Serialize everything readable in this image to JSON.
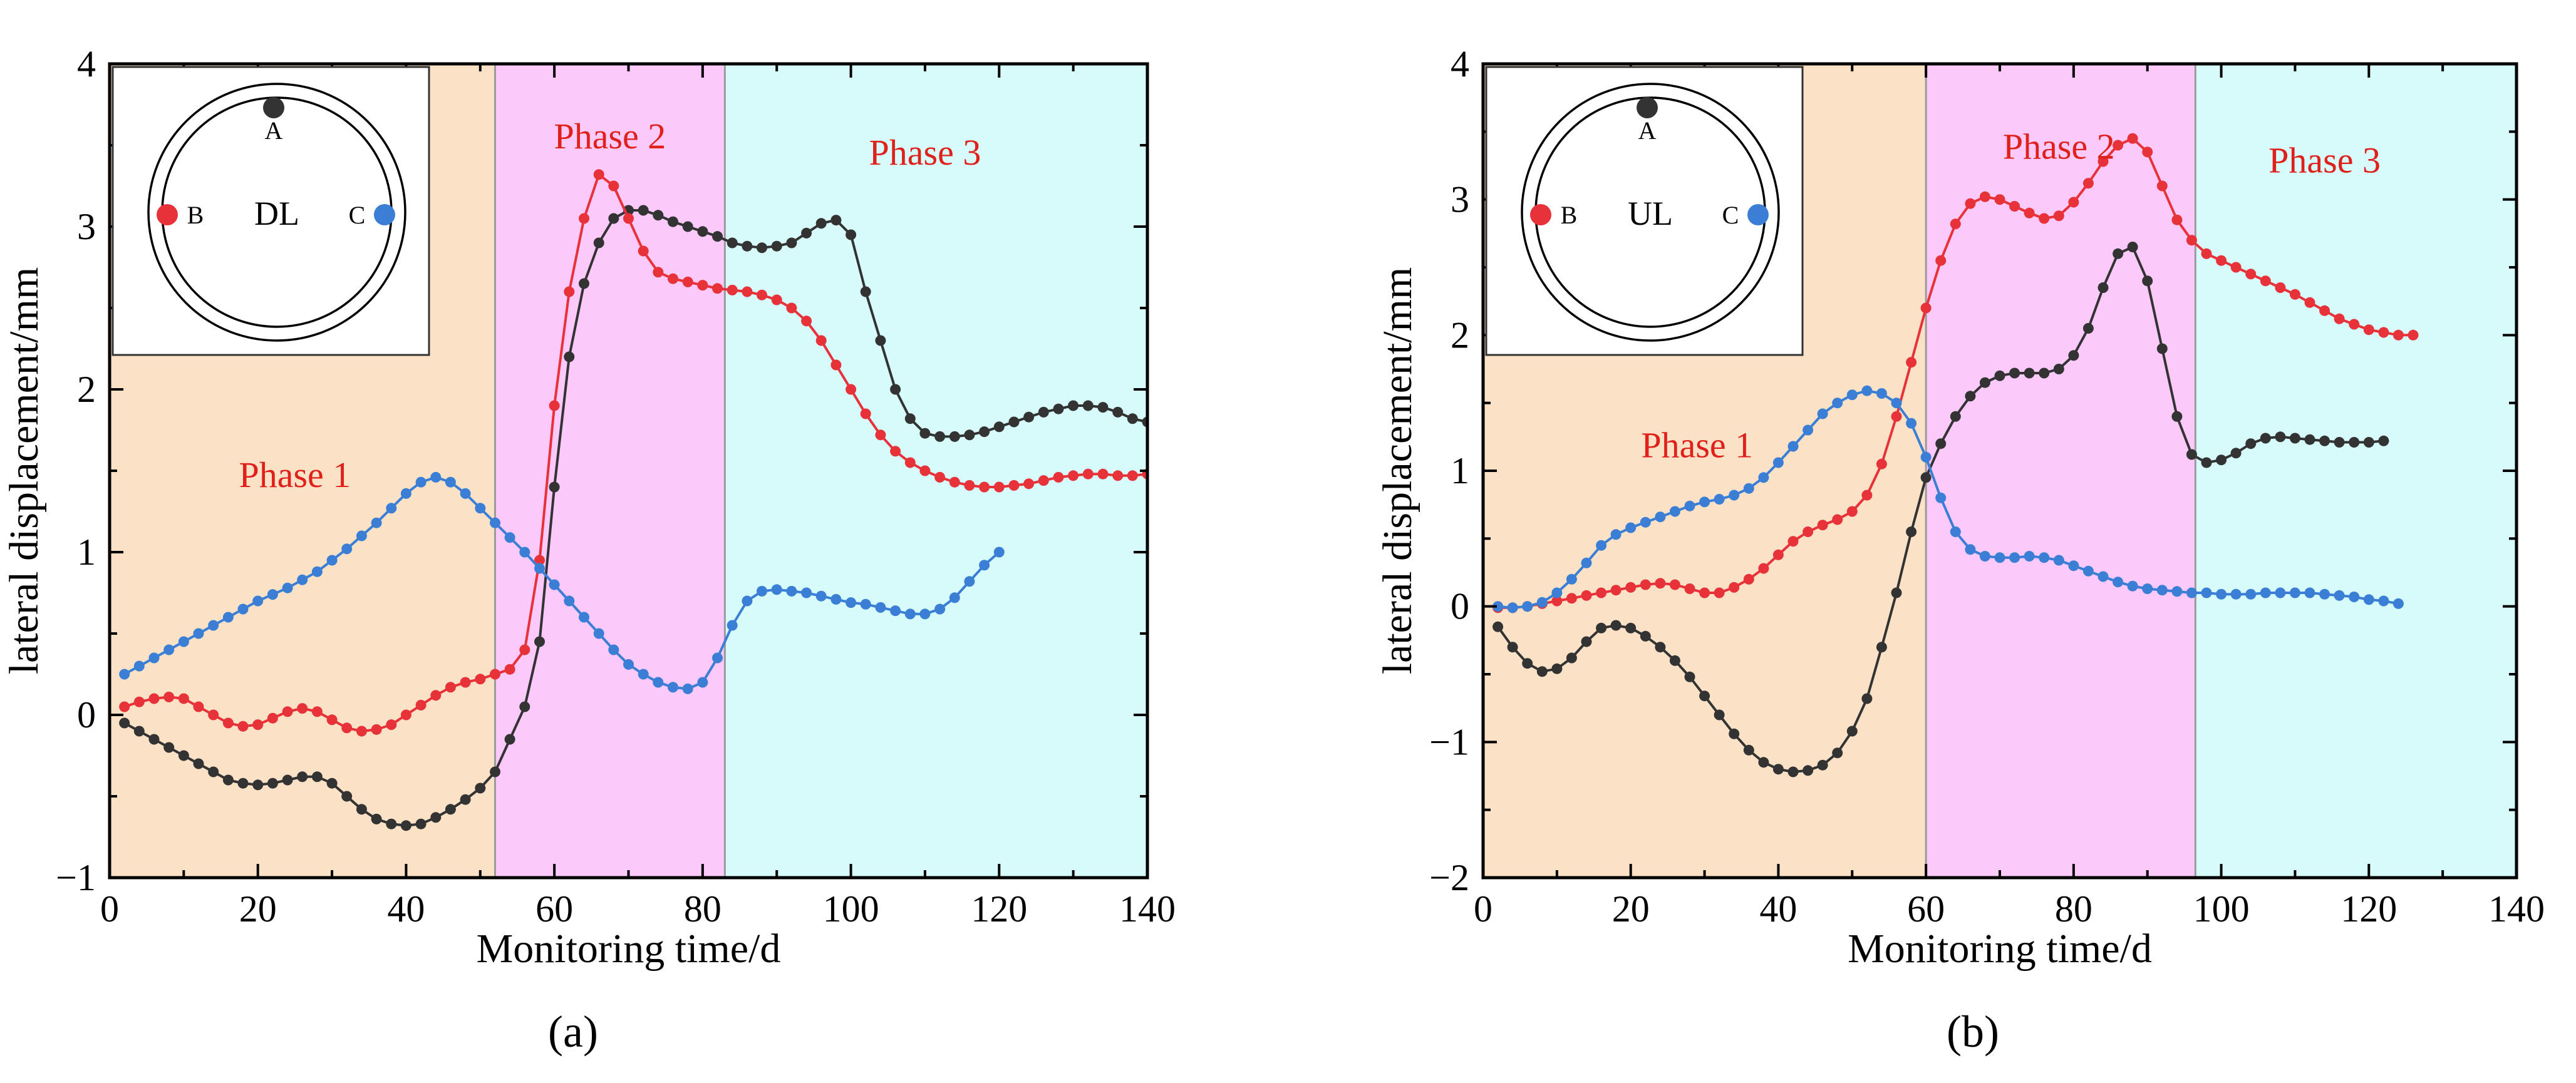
{
  "figure": {
    "panels": [
      "a",
      "b"
    ]
  },
  "colors": {
    "phase1_bg": "#fbe2c6",
    "phase2_bg": "#fcc9fb",
    "phase3_bg": "#d7fbfb",
    "series_A": "#333333",
    "series_B": "#e8323a",
    "series_C": "#3a7fd5",
    "phase_label": "#e0201a"
  },
  "chart_data": [
    {
      "type": "line",
      "panel_label": "(a)",
      "xlabel": "Monitoring time/d",
      "ylabel": "lateral displacement/mm",
      "xlim": [
        0,
        140
      ],
      "ylim": [
        -1,
        4
      ],
      "xticks": [
        0,
        20,
        40,
        60,
        80,
        100,
        120,
        140
      ],
      "yticks": [
        -1,
        0,
        1,
        2,
        3,
        4
      ],
      "phases": [
        {
          "label": "Phase 1",
          "x_start": 0,
          "x_end": 52,
          "label_x": 25,
          "label_y": 1.4
        },
        {
          "label": "Phase 2",
          "x_start": 52,
          "x_end": 83,
          "label_x": 67.5,
          "label_y": 3.48
        },
        {
          "label": "Phase 3",
          "x_start": 83,
          "x_end": 140,
          "label_x": 110,
          "label_y": 3.38
        }
      ],
      "inset": {
        "title": "DL",
        "points": [
          {
            "label": "A",
            "color_key": "series_A"
          },
          {
            "label": "B",
            "color_key": "series_B"
          },
          {
            "label": "C",
            "color_key": "series_C"
          }
        ]
      },
      "series": [
        {
          "name": "A",
          "color_key": "series_A",
          "x_start": 2,
          "x_step": 2,
          "y": [
            -0.05,
            -0.1,
            -0.15,
            -0.2,
            -0.25,
            -0.3,
            -0.35,
            -0.4,
            -0.42,
            -0.43,
            -0.42,
            -0.4,
            -0.38,
            -0.38,
            -0.42,
            -0.5,
            -0.58,
            -0.64,
            -0.67,
            -0.68,
            -0.67,
            -0.63,
            -0.58,
            -0.52,
            -0.45,
            -0.35,
            -0.15,
            0.05,
            0.45,
            1.4,
            2.2,
            2.65,
            2.9,
            3.05,
            3.1,
            3.1,
            3.07,
            3.03,
            3.0,
            2.97,
            2.94,
            2.9,
            2.88,
            2.87,
            2.88,
            2.9,
            2.96,
            3.02,
            3.04,
            2.95,
            2.6,
            2.3,
            2.0,
            1.82,
            1.73,
            1.71,
            1.71,
            1.72,
            1.74,
            1.77,
            1.8,
            1.83,
            1.86,
            1.88,
            1.9,
            1.9,
            1.89,
            1.86,
            1.82,
            1.8
          ]
        },
        {
          "name": "B",
          "color_key": "series_B",
          "x_start": 2,
          "x_step": 2,
          "y": [
            0.05,
            0.08,
            0.1,
            0.11,
            0.1,
            0.05,
            0.0,
            -0.05,
            -0.07,
            -0.06,
            -0.02,
            0.02,
            0.04,
            0.02,
            -0.03,
            -0.08,
            -0.1,
            -0.09,
            -0.06,
            0.0,
            0.06,
            0.12,
            0.17,
            0.2,
            0.22,
            0.25,
            0.28,
            0.4,
            0.95,
            1.9,
            2.6,
            3.05,
            3.32,
            3.25,
            3.05,
            2.85,
            2.72,
            2.68,
            2.66,
            2.64,
            2.62,
            2.61,
            2.6,
            2.58,
            2.55,
            2.5,
            2.42,
            2.3,
            2.15,
            2.0,
            1.85,
            1.72,
            1.62,
            1.55,
            1.5,
            1.46,
            1.43,
            1.41,
            1.4,
            1.4,
            1.41,
            1.42,
            1.44,
            1.46,
            1.47,
            1.48,
            1.48,
            1.47,
            1.47,
            1.48
          ]
        },
        {
          "name": "C",
          "color_key": "series_C",
          "x_start": 2,
          "x_step": 2,
          "y": [
            0.25,
            0.3,
            0.35,
            0.4,
            0.45,
            0.5,
            0.55,
            0.6,
            0.65,
            0.7,
            0.74,
            0.78,
            0.83,
            0.88,
            0.95,
            1.02,
            1.1,
            1.18,
            1.27,
            1.36,
            1.43,
            1.46,
            1.43,
            1.36,
            1.27,
            1.18,
            1.09,
            1.0,
            0.9,
            0.8,
            0.7,
            0.6,
            0.5,
            0.4,
            0.31,
            0.25,
            0.2,
            0.17,
            0.16,
            0.2,
            0.35,
            0.55,
            0.7,
            0.76,
            0.77,
            0.76,
            0.75,
            0.73,
            0.71,
            0.69,
            0.68,
            0.66,
            0.64,
            0.62,
            0.62,
            0.65,
            0.72,
            0.82,
            0.92,
            1.0
          ]
        }
      ]
    },
    {
      "type": "line",
      "panel_label": "(b)",
      "xlabel": "Monitoring time/d",
      "ylabel": "lateral displacement/mm",
      "xlim": [
        0,
        140
      ],
      "ylim": [
        -2,
        4
      ],
      "xticks": [
        0,
        20,
        40,
        60,
        80,
        100,
        120,
        140
      ],
      "yticks": [
        -2,
        -1,
        0,
        1,
        2,
        3,
        4
      ],
      "phases": [
        {
          "label": "Phase 1",
          "x_start": 0,
          "x_end": 60,
          "label_x": 29,
          "label_y": 1.1
        },
        {
          "label": "Phase 2",
          "x_start": 60,
          "x_end": 96.5,
          "label_x": 78,
          "label_y": 3.3
        },
        {
          "label": "Phase 3",
          "x_start": 96.5,
          "x_end": 140,
          "label_x": 114,
          "label_y": 3.2
        }
      ],
      "inset": {
        "title": "UL",
        "points": [
          {
            "label": "A",
            "color_key": "series_A"
          },
          {
            "label": "B",
            "color_key": "series_B"
          },
          {
            "label": "C",
            "color_key": "series_C"
          }
        ]
      },
      "series": [
        {
          "name": "A",
          "color_key": "series_A",
          "x_start": 2,
          "x_step": 2,
          "y": [
            -0.15,
            -0.3,
            -0.42,
            -0.48,
            -0.46,
            -0.38,
            -0.26,
            -0.16,
            -0.14,
            -0.16,
            -0.22,
            -0.3,
            -0.4,
            -0.52,
            -0.66,
            -0.8,
            -0.94,
            -1.06,
            -1.15,
            -1.2,
            -1.22,
            -1.21,
            -1.17,
            -1.08,
            -0.92,
            -0.68,
            -0.3,
            0.1,
            0.55,
            0.95,
            1.2,
            1.4,
            1.55,
            1.65,
            1.7,
            1.72,
            1.72,
            1.72,
            1.75,
            1.85,
            2.05,
            2.35,
            2.6,
            2.65,
            2.4,
            1.9,
            1.4,
            1.12,
            1.06,
            1.08,
            1.13,
            1.2,
            1.24,
            1.25,
            1.24,
            1.23,
            1.22,
            1.21,
            1.21,
            1.21,
            1.22
          ]
        },
        {
          "name": "B",
          "color_key": "series_B",
          "x_start": 2,
          "x_step": 2,
          "y": [
            -0.01,
            -0.01,
            0.0,
            0.02,
            0.04,
            0.06,
            0.08,
            0.1,
            0.12,
            0.14,
            0.16,
            0.17,
            0.16,
            0.13,
            0.1,
            0.1,
            0.14,
            0.2,
            0.28,
            0.38,
            0.48,
            0.55,
            0.6,
            0.64,
            0.7,
            0.82,
            1.05,
            1.4,
            1.8,
            2.2,
            2.55,
            2.82,
            2.97,
            3.02,
            3.0,
            2.95,
            2.9,
            2.86,
            2.88,
            2.98,
            3.12,
            3.28,
            3.4,
            3.45,
            3.35,
            3.1,
            2.85,
            2.7,
            2.6,
            2.55,
            2.5,
            2.45,
            2.4,
            2.35,
            2.3,
            2.24,
            2.18,
            2.12,
            2.08,
            2.04,
            2.02,
            2.0,
            2.0
          ]
        },
        {
          "name": "C",
          "color_key": "series_C",
          "x_start": 2,
          "x_step": 2,
          "y": [
            0.0,
            -0.01,
            0.0,
            0.03,
            0.1,
            0.2,
            0.32,
            0.45,
            0.53,
            0.58,
            0.62,
            0.66,
            0.7,
            0.74,
            0.77,
            0.79,
            0.82,
            0.87,
            0.95,
            1.06,
            1.18,
            1.3,
            1.42,
            1.5,
            1.56,
            1.59,
            1.57,
            1.5,
            1.35,
            1.1,
            0.8,
            0.55,
            0.42,
            0.37,
            0.36,
            0.36,
            0.37,
            0.36,
            0.34,
            0.3,
            0.26,
            0.22,
            0.18,
            0.15,
            0.13,
            0.12,
            0.11,
            0.1,
            0.1,
            0.09,
            0.09,
            0.09,
            0.1,
            0.1,
            0.1,
            0.1,
            0.09,
            0.08,
            0.07,
            0.05,
            0.04,
            0.02
          ]
        }
      ]
    }
  ]
}
